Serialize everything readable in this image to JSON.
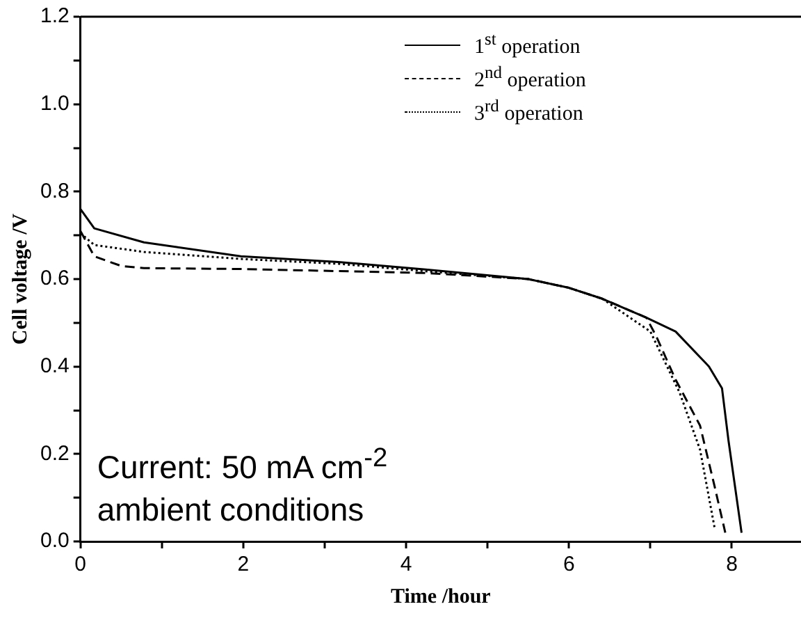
{
  "chart_data": {
    "type": "line",
    "xlabel": "Time /hour",
    "ylabel": "Cell voltage /V",
    "xlim": [
      0,
      8.85
    ],
    "ylim": [
      0,
      1.2
    ],
    "xticks": [
      0,
      {
        "value": 1,
        "label": null
      },
      2,
      {
        "value": 3,
        "label": null
      },
      4,
      {
        "value": 5,
        "label": null
      },
      6,
      {
        "value": 7,
        "label": null
      },
      8
    ],
    "yticks": [
      {
        "value": 0,
        "label": "0.0"
      },
      {
        "value": 0.1,
        "label": null
      },
      {
        "value": 0.2,
        "label": "0.2"
      },
      {
        "value": 0.3,
        "label": null
      },
      {
        "value": 0.4,
        "label": "0.4"
      },
      {
        "value": 0.5,
        "label": null
      },
      {
        "value": 0.6,
        "label": "0.6"
      },
      {
        "value": 0.7,
        "label": null
      },
      {
        "value": 0.8,
        "label": "0.8"
      },
      {
        "value": 0.9,
        "label": null
      },
      {
        "value": 1.0,
        "label": "1.0"
      },
      {
        "value": 1.1,
        "label": null
      },
      {
        "value": 1.2,
        "label": "1.2"
      }
    ],
    "grid": false,
    "legend": "top right",
    "marker": "none",
    "annotations": [
      "Current: 50 mA cm$^{-2}$",
      "ambient conditions"
    ],
    "series": [
      {
        "name": "1$^{st}$ operation",
        "color": "#000000",
        "line_style": "solid",
        "x": [
          0,
          0.17,
          0.78,
          1.97,
          3.17,
          4.24,
          5.5,
          6.0,
          6.41,
          6.95,
          7.31,
          7.72,
          7.88,
          7.96,
          8.12
        ],
        "values": [
          0.76,
          0.716,
          0.684,
          0.652,
          0.639,
          0.622,
          0.6,
          0.58,
          0.555,
          0.512,
          0.48,
          0.4,
          0.35,
          0.23,
          0.02
        ]
      },
      {
        "name": "2$^{nd}$ operation",
        "color": "#000000",
        "line_style": "dashed",
        "x": [
          0,
          0.17,
          0.5,
          0.78,
          1.97,
          4.24,
          5.5,
          6.0,
          6.41,
          6.95,
          7.07,
          7.31,
          7.61,
          7.79,
          7.92
        ],
        "values": [
          0.71,
          0.652,
          0.63,
          0.625,
          0.623,
          0.614,
          0.6,
          0.58,
          0.555,
          0.512,
          0.47,
          0.37,
          0.265,
          0.125,
          0.02
        ]
      },
      {
        "name": "3$^{rd}$ operation",
        "color": "#000000",
        "line_style": "dotted",
        "x": [
          0,
          0.17,
          0.78,
          1.97,
          3.17,
          4.24,
          5.5,
          6.0,
          6.41,
          7.0,
          7.36,
          7.61,
          7.79
        ],
        "values": [
          0.705,
          0.678,
          0.662,
          0.646,
          0.635,
          0.618,
          0.6,
          0.58,
          0.555,
          0.48,
          0.34,
          0.21,
          0.03
        ]
      }
    ]
  }
}
